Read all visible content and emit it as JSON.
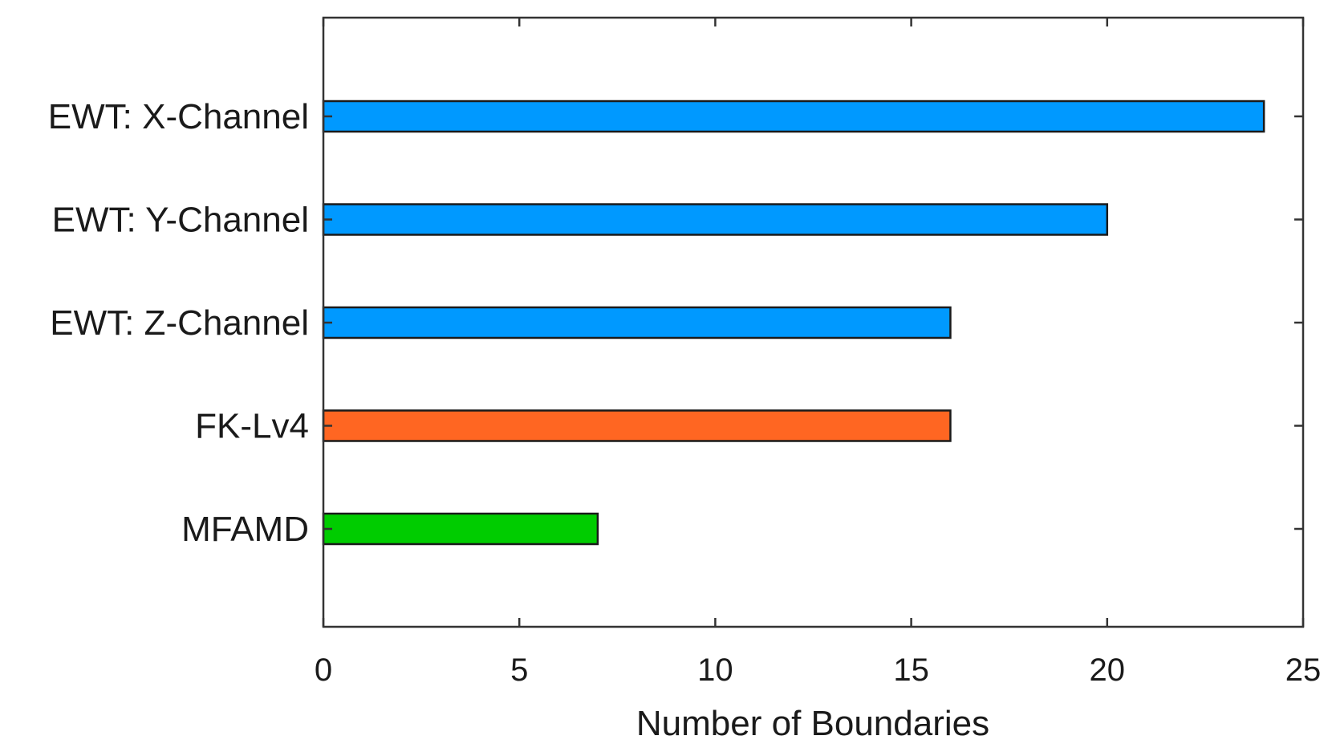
{
  "chart_data": {
    "type": "bar",
    "orientation": "horizontal",
    "title": "",
    "xlabel": "Number of Boundaries",
    "ylabel": "",
    "xlim": [
      0,
      25
    ],
    "xticks": [
      0,
      5,
      10,
      15,
      20,
      25
    ],
    "grid": false,
    "legend": "none",
    "categories": [
      "EWT: X-Channel",
      "EWT: Y-Channel",
      "EWT: Z-Channel",
      "FK-Lv4",
      "MFAMD"
    ],
    "values": [
      24,
      20,
      16,
      16,
      7
    ],
    "colors": [
      "#0099ff",
      "#0099ff",
      "#0099ff",
      "#ff6622",
      "#00cc00"
    ]
  }
}
